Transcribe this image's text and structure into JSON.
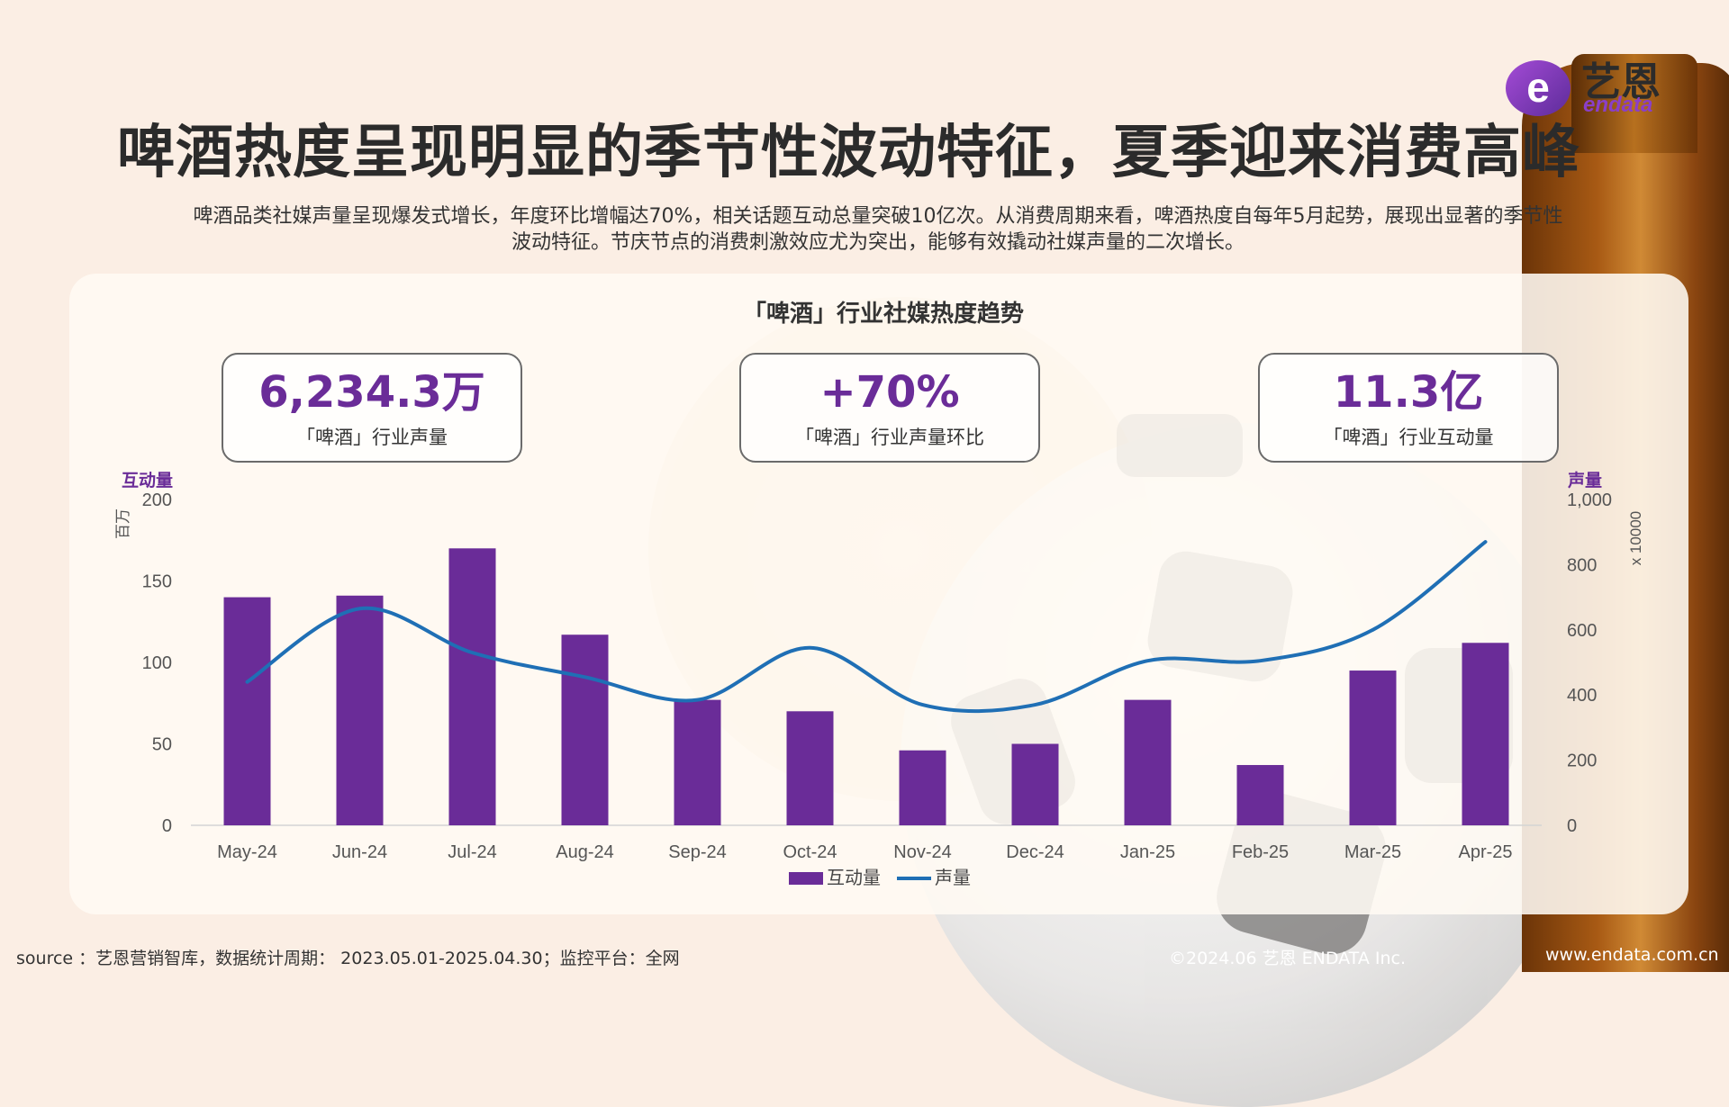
{
  "brand": {
    "name_cn": "艺恩",
    "name_en": "endata",
    "logo_letter": "e",
    "accent": "#6a2c98"
  },
  "header": {
    "title": "啤酒热度呈现明显的季节性波动特征，夏季迎来消费高峰",
    "subtitle_line1": "啤酒品类社媒声量呈现爆发式增长，年度环比增幅达70%，相关话题互动总量突破10亿次。从消费周期来看，啤酒热度自每年5月起势，展现出显著的季节性",
    "subtitle_line2": "波动特征。节庆节点的消费刺激效应尤为突出，能够有效撬动社媒声量的二次增长。"
  },
  "kpis": [
    {
      "value": "6,234.3万",
      "label": "「啤酒」行业声量"
    },
    {
      "value": "+70%",
      "label": "「啤酒」行业声量环比"
    },
    {
      "value": "11.3亿",
      "label": "「啤酒」行业互动量"
    }
  ],
  "chart_data": {
    "type": "bar",
    "title": "「啤酒」行业社媒热度趋势",
    "categories": [
      "May-24",
      "Jun-24",
      "Jul-24",
      "Aug-24",
      "Sep-24",
      "Oct-24",
      "Nov-24",
      "Dec-24",
      "Jan-25",
      "Feb-25",
      "Mar-25",
      "Apr-25"
    ],
    "series": [
      {
        "name": "互动量",
        "type": "bar",
        "axis": "left",
        "color": "#6a2c98",
        "values": [
          140,
          141,
          170,
          117,
          77,
          70,
          46,
          50,
          77,
          37,
          95,
          112
        ]
      },
      {
        "name": "声量",
        "type": "line",
        "axis": "right",
        "color": "#1f6fb5",
        "values": [
          440,
          665,
          530,
          455,
          385,
          545,
          370,
          370,
          505,
          505,
          600,
          870
        ]
      }
    ],
    "y_left": {
      "title": "互动量",
      "unit": "百万",
      "ylim": [
        0,
        200
      ],
      "ticks": [
        0,
        50,
        100,
        150,
        200
      ]
    },
    "y_right": {
      "title": "声量",
      "unit": "x 10000",
      "ylim": [
        0,
        1000
      ],
      "ticks": [
        0,
        200,
        400,
        600,
        800,
        1000
      ]
    },
    "y_right_tick_labels": [
      "0",
      "200",
      "400",
      "600",
      "800",
      "1,000"
    ],
    "legend": "bottom-center",
    "grid": false
  },
  "footer": {
    "source": "source ：艺恩营销智库，数据统计周期： 2023.05.01-2025.04.30；监控平台：全网",
    "copyright": "©2024.06  艺恩 ENDATA Inc.",
    "url": "www.endata.com.cn"
  }
}
